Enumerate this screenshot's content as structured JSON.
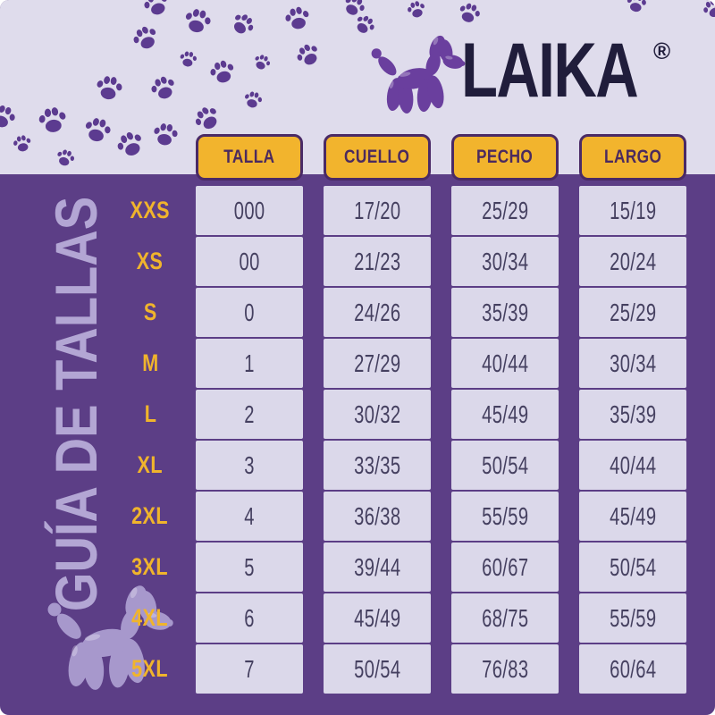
{
  "brand": {
    "name": "LAIKA",
    "registered_mark": "®",
    "logo_icon": "balloon-dog-icon"
  },
  "page": {
    "vertical_title": "GUÍA DE TALLAS"
  },
  "decor": {
    "paw_icon": "paw-print-icon",
    "silhouette_icon": "balloon-dog-silhouette-icon"
  },
  "chart_data": {
    "type": "table",
    "title": "GUÍA DE TALLAS",
    "columns": [
      "TALLA",
      "CUELLO",
      "PECHO",
      "LARGO"
    ],
    "row_labels": [
      "XXS",
      "XS",
      "S",
      "M",
      "L",
      "XL",
      "2XL",
      "3XL",
      "4XL",
      "5XL"
    ],
    "rows": [
      [
        "000",
        "17/20",
        "25/29",
        "15/19"
      ],
      [
        "00",
        "21/23",
        "30/34",
        "20/24"
      ],
      [
        "0",
        "24/26",
        "35/39",
        "25/29"
      ],
      [
        "1",
        "27/29",
        "40/44",
        "30/34"
      ],
      [
        "2",
        "30/32",
        "45/49",
        "35/39"
      ],
      [
        "3",
        "33/35",
        "50/54",
        "40/44"
      ],
      [
        "4",
        "36/38",
        "55/59",
        "45/49"
      ],
      [
        "5",
        "39/44",
        "60/67",
        "50/54"
      ],
      [
        "6",
        "45/49",
        "68/75",
        "55/59"
      ],
      [
        "7",
        "50/54",
        "76/83",
        "60/64"
      ]
    ]
  },
  "colors": {
    "background_purple": "#5c3e86",
    "band_light": "#dfdcec",
    "accent_yellow": "#f2b42d",
    "header_text": "#4b2a5e",
    "cell_background": "#dbd8ea",
    "cell_text": "#454060",
    "brand_text": "#201d3b",
    "logo_purple": "#6a3f9e",
    "paw_purple": "#5c3b90",
    "muted_lavender": "#b3a6d4",
    "silhouette_lavender": "#a798cc"
  }
}
